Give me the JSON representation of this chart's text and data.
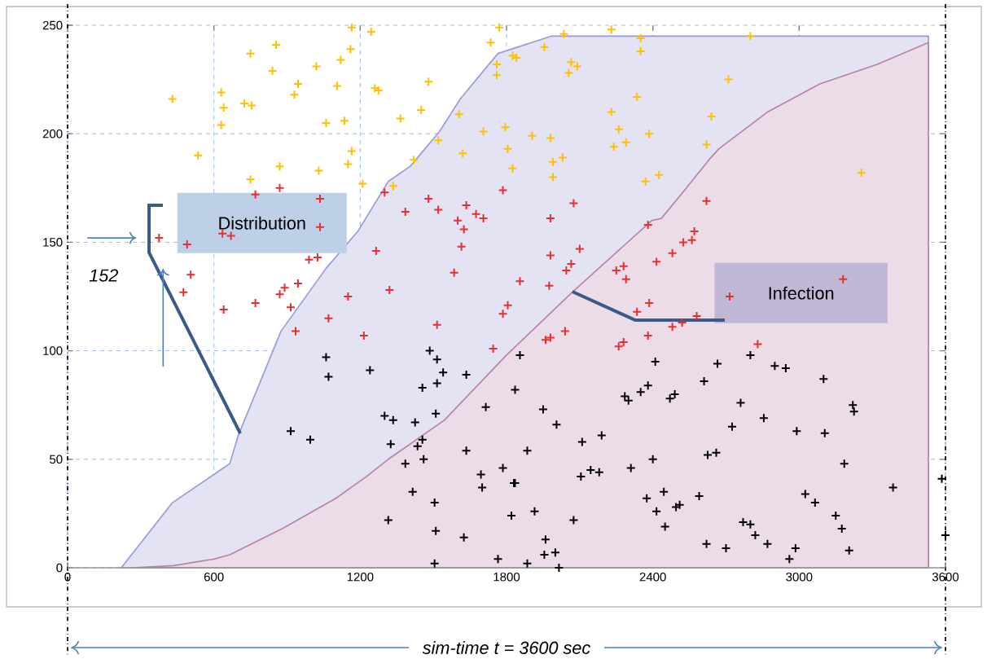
{
  "chart_data": {
    "type": "area",
    "xlabel": "sim-time t = 3600 sec",
    "xlim": [
      0,
      3600
    ],
    "ylim": [
      0,
      250
    ],
    "xticks": [
      0,
      600,
      1200,
      1800,
      2400,
      3000,
      3600
    ],
    "yticks": [
      0,
      50,
      100,
      150,
      200,
      250
    ],
    "grid": true,
    "marker": "cross",
    "ref_lines": [
      {
        "axis": "x",
        "value": 0,
        "color": "#000000",
        "line_style": "dashed"
      },
      {
        "axis": "x",
        "value": 3600,
        "color": "#000000",
        "line_style": "dashed"
      }
    ],
    "annotations": [
      {
        "text": "152",
        "x": 375,
        "y": 152
      }
    ],
    "series": [
      {
        "name": "Distribution",
        "marker": "none",
        "color": "#9a9ad8",
        "x": [
          220,
          430,
          600,
          665,
          700,
          875,
          1060,
          1190,
          1315,
          1405,
          1525,
          1610,
          1765,
          1985,
          3530
        ],
        "values": [
          0,
          30,
          43,
          48,
          61,
          109,
          138,
          155,
          178,
          185,
          201,
          216,
          237,
          245,
          245
        ]
      },
      {
        "name": "Infection",
        "marker": "none",
        "color": "#b683a9",
        "x": [
          265,
          435,
          600,
          665,
          880,
          1100,
          1225,
          1315,
          1545,
          1800,
          2070,
          2395,
          2435,
          2530,
          2630,
          2670,
          2870,
          3085,
          3320,
          3530
        ],
        "values": [
          0,
          1,
          4,
          6,
          18,
          32,
          42,
          50,
          68,
          98,
          127,
          160,
          161,
          174,
          188,
          193,
          210,
          223,
          232,
          242
        ]
      },
      {
        "type": "scatter",
        "color": "#ffc000",
        "x": [
          430,
          535,
          630,
          640,
          630,
          725,
          755,
          750,
          855,
          840,
          750,
          870,
          930,
          945,
          1020,
          1105,
          1120,
          1160,
          1165,
          1060,
          1135,
          1165,
          1150,
          1030,
          1210,
          1245,
          1260,
          1275,
          1480,
          1450,
          1365,
          1335,
          1420,
          1520,
          1620,
          1605,
          1705,
          1735,
          1770,
          1760,
          1760,
          1825,
          1840,
          1795,
          1805,
          1825,
          1905,
          1980,
          1990,
          1990,
          2030,
          1955,
          2035,
          2065,
          2055,
          2090,
          2230,
          2350,
          2350,
          2335,
          2230,
          2260,
          2290,
          2240,
          2385,
          2370,
          2425,
          2800,
          2710,
          2640,
          2620,
          3255
        ],
        "values": [
          216,
          190,
          219,
          212,
          204,
          214,
          213,
          237,
          241,
          229,
          179,
          185,
          218,
          223,
          231,
          222,
          234,
          239,
          249,
          205,
          206,
          192,
          186,
          183,
          177,
          247,
          221,
          220,
          224,
          211,
          207,
          176,
          188,
          197,
          191,
          209,
          201,
          242,
          249,
          232,
          227,
          236,
          235,
          203,
          193,
          184,
          199,
          198,
          187,
          180,
          189,
          240,
          246,
          233,
          228,
          231,
          248,
          244,
          238,
          217,
          210,
          202,
          196,
          194,
          200,
          178,
          181,
          245,
          225,
          208,
          195,
          182
        ]
      },
      {
        "type": "scatter",
        "color": "#e53030",
        "x": [
          375,
          490,
          505,
          475,
          635,
          670,
          770,
          870,
          1035,
          1035,
          990,
          1025,
          945,
          890,
          870,
          1150,
          640,
          770,
          915,
          935,
          1070,
          1215,
          1300,
          1385,
          1480,
          1520,
          1635,
          1600,
          1625,
          1675,
          1705,
          1785,
          1615,
          1265,
          1585,
          1320,
          1980,
          2075,
          1980,
          2065,
          2045,
          2100,
          1855,
          1975,
          2380,
          2250,
          2280,
          2290,
          2415,
          1515,
          1745,
          1785,
          1805,
          1960,
          1980,
          2040,
          2260,
          2280,
          2335,
          2385,
          2380,
          2620,
          2570,
          2525,
          2560,
          2480,
          3180,
          2715,
          2580,
          2520,
          2480,
          2830
        ],
        "values": [
          152,
          149,
          135,
          127,
          154,
          153,
          172,
          175,
          170,
          157,
          142,
          143,
          131,
          129,
          126,
          125,
          119,
          122,
          120,
          109,
          115,
          107,
          173,
          164,
          170,
          165,
          167,
          160,
          156,
          163,
          161,
          174,
          148,
          146,
          136,
          128,
          161,
          168,
          144,
          140,
          137,
          147,
          132,
          130,
          158,
          137,
          139,
          133,
          141,
          112,
          101,
          117,
          121,
          105,
          106,
          109,
          102,
          104,
          118,
          122,
          107,
          169,
          155,
          150,
          151,
          145,
          133,
          125,
          116,
          113,
          111,
          103
        ]
      },
      {
        "type": "scatter",
        "color": "#000000",
        "x": [
          1060,
          1070,
          915,
          995,
          1485,
          1515,
          1240,
          1540,
          1635,
          1515,
          1455,
          1300,
          1335,
          1425,
          1510,
          1715,
          1855,
          1835,
          1950,
          2005,
          1325,
          1455,
          1435,
          1460,
          1385,
          1635,
          1885,
          2110,
          2190,
          2285,
          2300,
          2350,
          2380,
          2410,
          2400,
          2310,
          1785,
          1695,
          1700,
          1835,
          1830,
          2105,
          2145,
          2180,
          1415,
          1505,
          1315,
          1510,
          1625,
          1765,
          1505,
          1820,
          1915,
          2075,
          1960,
          1955,
          2000,
          1885,
          2015,
          2375,
          2415,
          2665,
          2800,
          2610,
          2900,
          2945,
          3100,
          2470,
          2490,
          2760,
          2855,
          2725,
          2990,
          3105,
          3220,
          3225,
          2625,
          2660,
          3185,
          3585,
          3385,
          2445,
          2495,
          2510,
          2590,
          2450,
          3025,
          3065,
          3150,
          3175,
          3205,
          2770,
          2800,
          2820,
          2870,
          2985,
          2960,
          2620,
          2700,
          3600
        ],
        "values": [
          97,
          88,
          63,
          59,
          100,
          96,
          91,
          90,
          89,
          85,
          83,
          70,
          68,
          67,
          71,
          74,
          98,
          82,
          73,
          66,
          57,
          59,
          56,
          50,
          48,
          54,
          54,
          58,
          61,
          79,
          77,
          81,
          84,
          95,
          50,
          46,
          46,
          43,
          37,
          39,
          39,
          42,
          45,
          44,
          35,
          30,
          22,
          17,
          14,
          4,
          2,
          24,
          26,
          22,
          13,
          6,
          7,
          2,
          0,
          32,
          26,
          94,
          98,
          86,
          93,
          92,
          87,
          78,
          80,
          76,
          69,
          65,
          63,
          62,
          75,
          72,
          52,
          53,
          48,
          41,
          37,
          35,
          28,
          29,
          33,
          19,
          34,
          30,
          24,
          18,
          8,
          21,
          20,
          15,
          11,
          9,
          4,
          11,
          9,
          15
        ]
      }
    ]
  }
}
